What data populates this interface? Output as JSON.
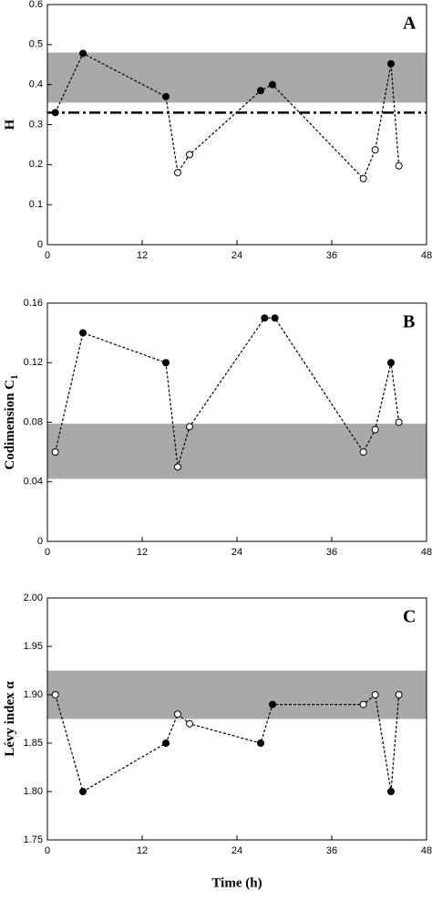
{
  "chart_data": [
    {
      "type": "line",
      "annotation": "A",
      "y_label": "H",
      "x": [
        1,
        4.5,
        15,
        16.5,
        18,
        27,
        28.5,
        40,
        41.5,
        43.5,
        44.5
      ],
      "series": [
        {
          "color": "#000000",
          "values": [
            0.33,
            0.478,
            0.37,
            0.18,
            0.225,
            0.385,
            0.4,
            0.165,
            0.237,
            0.452,
            0.197
          ],
          "filled": [
            true,
            true,
            true,
            false,
            false,
            true,
            true,
            false,
            false,
            true,
            false
          ]
        }
      ],
      "band": [
        0.355,
        0.48
      ],
      "hline": 0.33,
      "xlim": [
        0,
        48
      ],
      "xticks": [
        0,
        12,
        24,
        36,
        48
      ],
      "ylim": [
        0,
        0.6
      ],
      "yticks": [
        0,
        0.1,
        0.2,
        0.3,
        0.4,
        0.5,
        0.6
      ]
    },
    {
      "type": "line",
      "annotation": "B",
      "y_label": "Codimension C",
      "y_label_subscript": "1",
      "x": [
        1,
        4.5,
        15,
        16.5,
        18,
        27.5,
        28.8,
        40,
        41.5,
        43.5,
        44.5
      ],
      "series": [
        {
          "color": "#000000",
          "values": [
            0.06,
            0.14,
            0.12,
            0.05,
            0.077,
            0.15,
            0.15,
            0.06,
            0.075,
            0.12,
            0.08
          ],
          "filled": [
            false,
            true,
            true,
            false,
            false,
            true,
            true,
            false,
            false,
            true,
            false
          ]
        }
      ],
      "band": [
        0.042,
        0.079
      ],
      "xlim": [
        0,
        48
      ],
      "xticks": [
        0,
        12,
        24,
        36,
        48
      ],
      "ylim": [
        0,
        0.16
      ],
      "yticks": [
        0,
        0.04,
        0.08,
        0.12,
        0.16
      ]
    },
    {
      "type": "line",
      "annotation": "C",
      "y_label": "Lévy index α",
      "x_label": "Time (h)",
      "x": [
        1,
        4.5,
        15,
        16.5,
        18,
        27,
        28.5,
        40,
        41.5,
        43.5,
        44.5
      ],
      "series": [
        {
          "color": "#000000",
          "values": [
            1.9,
            1.8,
            1.85,
            1.88,
            1.87,
            1.85,
            1.89,
            1.89,
            1.9,
            1.8,
            1.9
          ],
          "filled": [
            false,
            true,
            true,
            false,
            false,
            true,
            true,
            false,
            false,
            true,
            false
          ]
        }
      ],
      "band": [
        1.875,
        1.925
      ],
      "xlim": [
        0,
        48
      ],
      "xticks": [
        0,
        12,
        24,
        36,
        48
      ],
      "ylim": [
        1.75,
        2.0
      ],
      "yticks": [
        1.75,
        {
          "value": 1.8,
          "label": "1.80"
        },
        1.85,
        {
          "value": 1.9,
          "label": "1.90"
        },
        1.95,
        {
          "value": 2.0,
          "label": "2.00"
        }
      ]
    }
  ]
}
